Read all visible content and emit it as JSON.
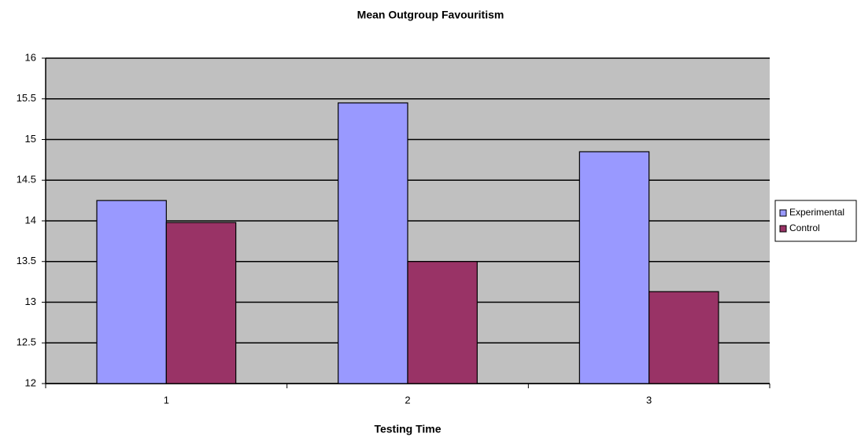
{
  "chart_data": {
    "type": "bar",
    "title": "Mean Outgroup Favouritism",
    "x_label": "Testing Time",
    "categories": [
      "1",
      "2",
      "3"
    ],
    "series": [
      {
        "name": "Experimental",
        "color": "#9999ff",
        "values": [
          14.25,
          15.45,
          14.85
        ]
      },
      {
        "name": "Control",
        "color": "#993366",
        "values": [
          13.98,
          13.5,
          13.13
        ]
      }
    ],
    "ylim": [
      12,
      16
    ],
    "yticks": [
      12,
      12.5,
      13,
      13.5,
      14,
      14.5,
      15,
      15.5,
      16
    ],
    "grid": true,
    "legend": "right"
  }
}
